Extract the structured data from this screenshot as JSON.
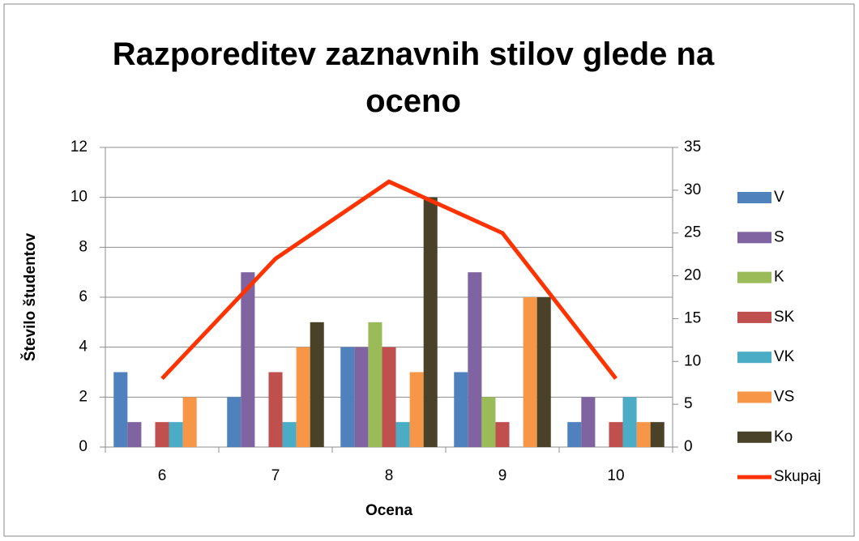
{
  "chart_data": {
    "type": "bar",
    "title": "Razporeditev zaznavnih stilov glede na oceno",
    "x_label": "Ocena",
    "y_label": "Število študentov",
    "categories": [
      "6",
      "7",
      "8",
      "9",
      "10"
    ],
    "series": [
      {
        "name": "V",
        "color": "#4f81bd",
        "values": [
          3,
          2,
          4,
          3,
          1
        ]
      },
      {
        "name": "S",
        "color": "#8064a2",
        "values": [
          1,
          7,
          4,
          7,
          2
        ]
      },
      {
        "name": "K",
        "color": "#9bbb59",
        "values": [
          0,
          0,
          5,
          2,
          0
        ]
      },
      {
        "name": "SK",
        "color": "#c0504d",
        "values": [
          1,
          3,
          4,
          1,
          1
        ]
      },
      {
        "name": "VK",
        "color": "#4bacc6",
        "values": [
          1,
          1,
          1,
          0,
          2
        ]
      },
      {
        "name": "VS",
        "color": "#f79646",
        "values": [
          2,
          4,
          3,
          6,
          1
        ]
      },
      {
        "name": "Ko",
        "color": "#4a4228",
        "values": [
          0,
          5,
          10,
          6,
          1
        ]
      },
      {
        "name": "Skupaj",
        "color": "#ff3300",
        "type": "line",
        "axis": "y2",
        "values": [
          8,
          22,
          31,
          25,
          8
        ]
      }
    ],
    "ylim": [
      0,
      12
    ],
    "yticks": [
      0,
      2,
      4,
      6,
      8,
      10,
      12
    ],
    "y2lim": [
      0,
      35
    ],
    "y2ticks": [
      0,
      5,
      10,
      15,
      20,
      25,
      30,
      35
    ],
    "grid": true,
    "legend": "right"
  }
}
